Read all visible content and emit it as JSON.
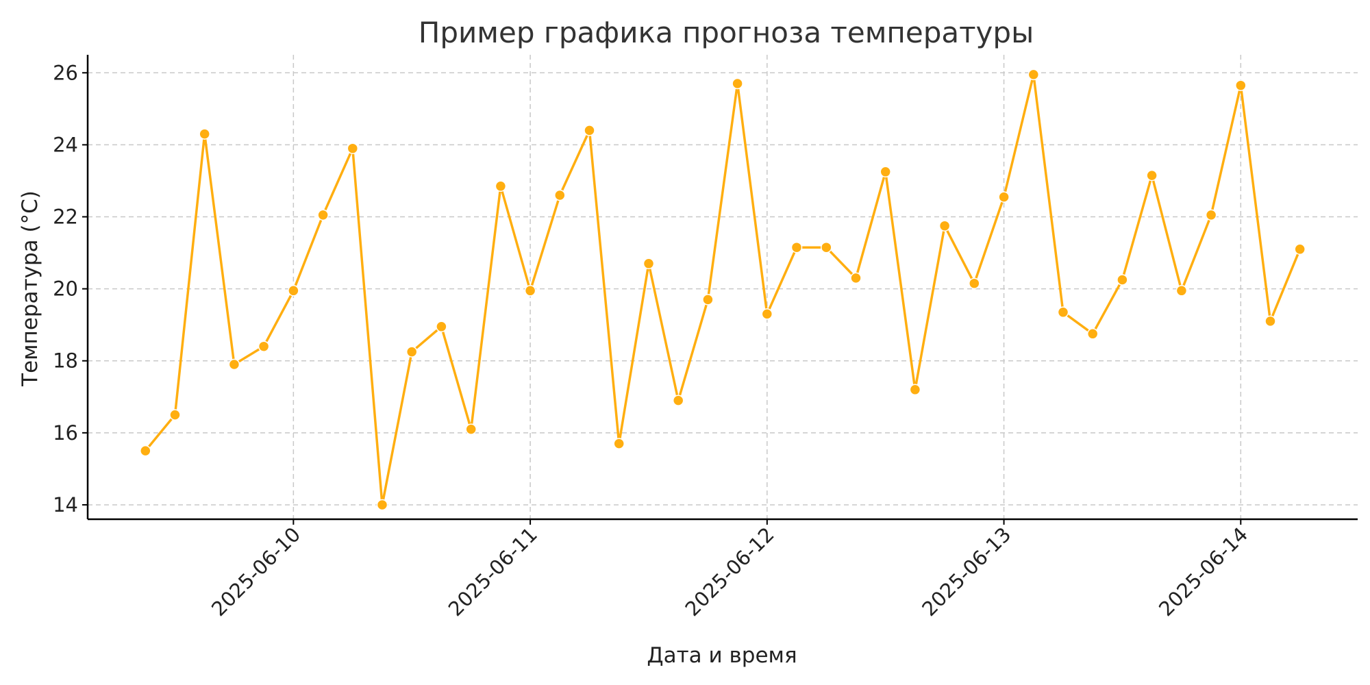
{
  "chart_data": {
    "type": "line",
    "title": "Пример графика прогноза температуры",
    "xlabel": "Дата и время",
    "ylabel": "Температура (°C)",
    "x_type": "datetime",
    "x_start": "2025-06-09 09:00",
    "x_step_hours": 3,
    "x_ticks": [
      "2025-06-10",
      "2025-06-11",
      "2025-06-12",
      "2025-06-13",
      "2025-06-14"
    ],
    "ylim": [
      13.6,
      26.5
    ],
    "y_ticks": [
      14,
      16,
      18,
      20,
      22,
      24,
      26
    ],
    "grid": true,
    "color": "#ffae10",
    "series": [
      {
        "values": [
          15.5,
          16.5,
          24.3,
          17.9,
          18.4,
          19.95,
          22.05,
          23.9,
          14.0,
          18.25,
          18.95,
          16.1,
          22.85,
          19.95,
          22.6,
          24.4,
          15.7,
          20.7,
          16.9,
          19.7,
          25.7,
          19.3,
          21.15,
          21.15,
          20.3,
          23.25,
          17.2,
          21.75,
          20.15,
          22.55,
          25.95,
          19.35,
          18.75,
          20.25,
          23.15,
          19.95,
          22.05,
          25.65,
          19.1,
          21.1
        ]
      }
    ]
  }
}
